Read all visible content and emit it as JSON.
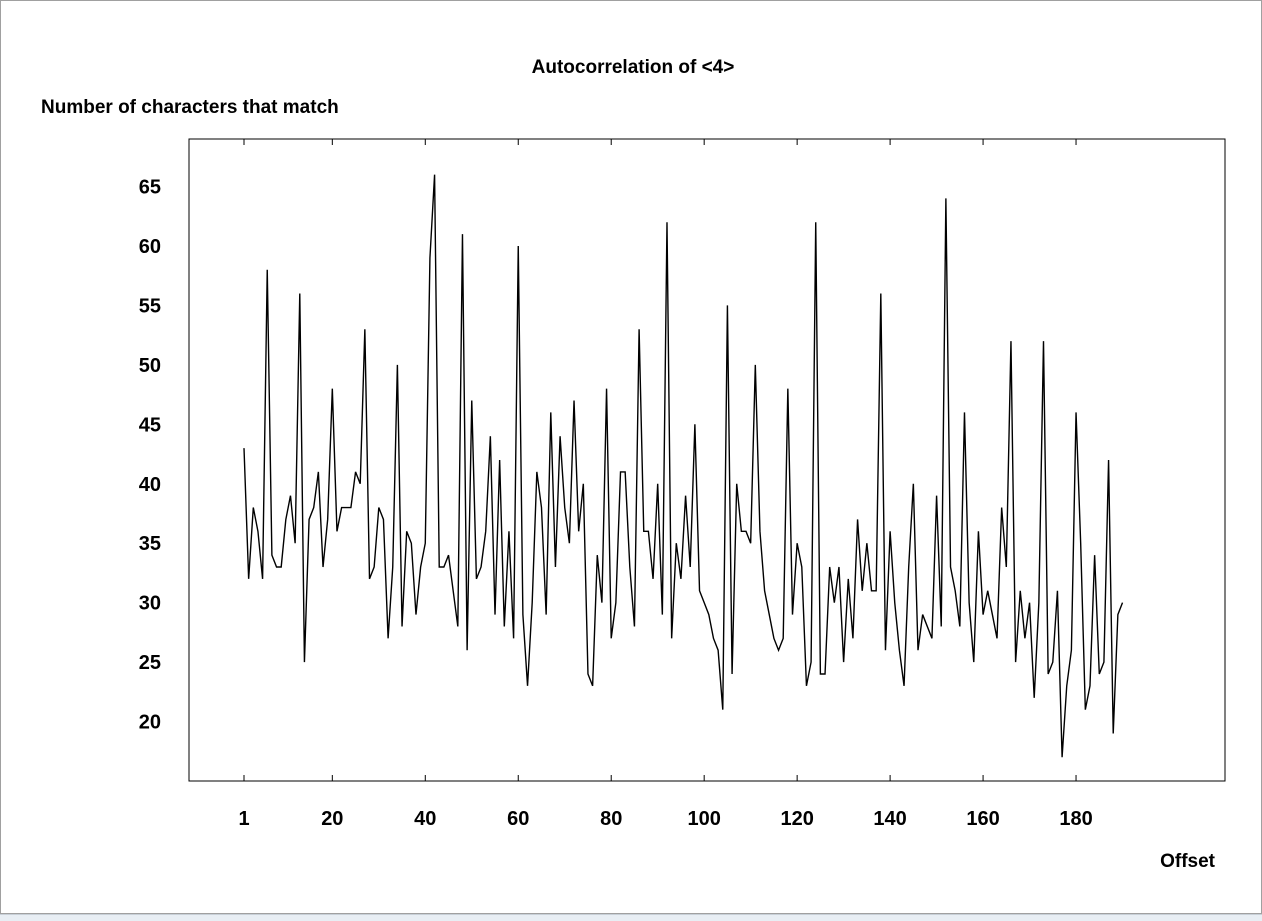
{
  "chart_data": {
    "type": "line",
    "title": "Autocorrelation of <4>",
    "ylabel": "Number of characters that match",
    "xlabel": "Offset",
    "xlim": [
      1,
      200
    ],
    "ylim": [
      15,
      69
    ],
    "x_ticks": [
      1,
      20,
      40,
      60,
      80,
      100,
      120,
      140,
      160,
      180
    ],
    "y_ticks": [
      20,
      25,
      30,
      35,
      40,
      45,
      50,
      55,
      60,
      65
    ],
    "grid": false,
    "series": [
      {
        "color": "#000000",
        "x_start": 1,
        "x_step": 1,
        "values": [
          43,
          32,
          38,
          36,
          32,
          58,
          34,
          33,
          33,
          37,
          39,
          35,
          56,
          25,
          37,
          38,
          41,
          33,
          37,
          48,
          36,
          38,
          38,
          38,
          41,
          40,
          53,
          32,
          33,
          38,
          37,
          27,
          33,
          50,
          28,
          36,
          35,
          29,
          33,
          35,
          59,
          66,
          33,
          33,
          34,
          31,
          28,
          61,
          26,
          47,
          32,
          33,
          36,
          44,
          29,
          42,
          28,
          36,
          27,
          60,
          29,
          23,
          30,
          41,
          38,
          29,
          46,
          33,
          44,
          38,
          35,
          47,
          36,
          40,
          24,
          23,
          34,
          30,
          48,
          27,
          30,
          41,
          41,
          33,
          28,
          53,
          36,
          36,
          32,
          40,
          29,
          62,
          27,
          35,
          32,
          39,
          33,
          45,
          31,
          30,
          29,
          27,
          26,
          21,
          55,
          24,
          40,
          36,
          36,
          35,
          50,
          36,
          31,
          29,
          27,
          26,
          27,
          48,
          29,
          35,
          33,
          23,
          25,
          62,
          24,
          24,
          33,
          30,
          33,
          25,
          32,
          27,
          37,
          31,
          35,
          31,
          31,
          56,
          26,
          36,
          30,
          26,
          23,
          33,
          40,
          26,
          29,
          28,
          27,
          39,
          28,
          64,
          33,
          31,
          28,
          46,
          30,
          25,
          36,
          29,
          31,
          29,
          27,
          38,
          33,
          52,
          25,
          31,
          27,
          30,
          22,
          30,
          52,
          24,
          25,
          31,
          17,
          23,
          26,
          46,
          35,
          21,
          23,
          34,
          24,
          25,
          42,
          19,
          29,
          30
        ]
      }
    ]
  }
}
